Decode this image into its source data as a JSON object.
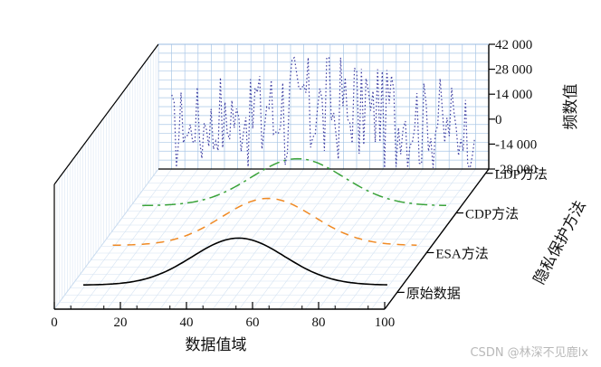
{
  "chart_data": {
    "type": "3d-waterfall-line",
    "x_axis": {
      "label": "数据值域",
      "ticks": [
        0,
        20,
        40,
        60,
        80,
        100
      ],
      "range": [
        0,
        100
      ]
    },
    "z_axis": {
      "label": "频数值",
      "ticks": [
        "42 000",
        "28 000",
        "14 000",
        "0",
        "-14 000",
        "-28 000"
      ],
      "tick_values": [
        42000,
        28000,
        14000,
        0,
        -14000,
        -28000
      ],
      "range": [
        -28000,
        42000
      ]
    },
    "y_axis": {
      "label": "隐私保护方法",
      "categories": [
        "原始数据",
        "ESA方法",
        "CDP方法",
        "LDP方法"
      ]
    },
    "series": [
      {
        "name": "原始数据",
        "style": "solid",
        "color": "#000000",
        "shape": "gaussian",
        "x_range": [
          5,
          97
        ],
        "peak_x": 52
      },
      {
        "name": "ESA方法",
        "style": "dashed",
        "color": "#f08a24",
        "shape": "gaussian",
        "x_range": [
          5,
          97
        ],
        "peak_x": 52
      },
      {
        "name": "CDP方法",
        "style": "dash-dot",
        "color": "#3aa33a",
        "shape": "gaussian",
        "x_range": [
          5,
          97
        ],
        "peak_x": 52
      },
      {
        "name": "LDP方法",
        "style": "dotted",
        "color": "#3a3aa0",
        "shape": "noisy",
        "x_range": [
          5,
          97
        ]
      }
    ]
  },
  "watermark": "CSDN @林深不见鹿lx"
}
